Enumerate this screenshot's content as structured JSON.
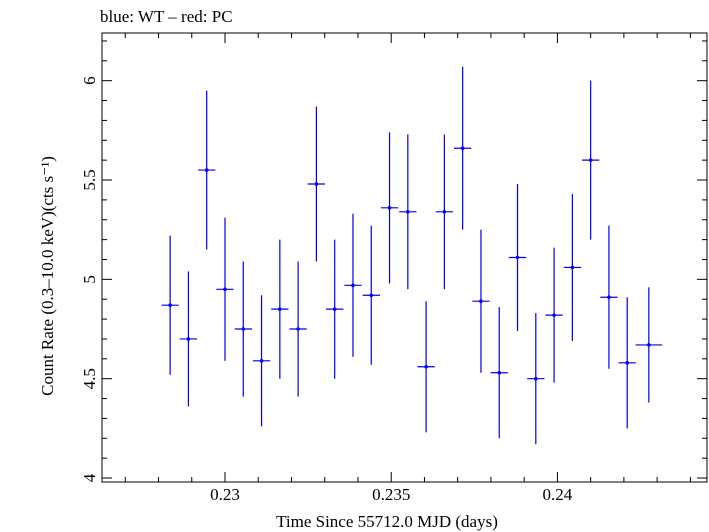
{
  "chart_data": {
    "type": "scatter",
    "title": "blue: WT – red: PC",
    "xlabel": "Time Since 55712.0 MJD (days)",
    "ylabel": "Count Rate (0.3–10.0 keV)(cts s⁻¹)",
    "xlim": [
      0.2263,
      0.2445
    ],
    "ylim": [
      3.98,
      6.24
    ],
    "xticks": [
      0.23,
      0.235,
      0.24
    ],
    "xtick_labels": [
      "0.23",
      "0.235",
      "0.24"
    ],
    "yticks": [
      4,
      4.5,
      5,
      5.5,
      6
    ],
    "ytick_labels": [
      "4",
      "4.5",
      "5",
      "5.5",
      "6"
    ],
    "grid": false,
    "series": [
      {
        "color": "#0000ee",
        "points": [
          {
            "x": 0.22835,
            "y": 4.87,
            "xerr": 0.00026,
            "yerr": 0.35
          },
          {
            "x": 0.2289,
            "y": 4.7,
            "xerr": 0.00026,
            "yerr": 0.34
          },
          {
            "x": 0.22945,
            "y": 5.55,
            "xerr": 0.00026,
            "yerr": 0.4
          },
          {
            "x": 0.23,
            "y": 4.95,
            "xerr": 0.00026,
            "yerr": 0.36
          },
          {
            "x": 0.23055,
            "y": 4.75,
            "xerr": 0.00026,
            "yerr": 0.34
          },
          {
            "x": 0.2311,
            "y": 4.59,
            "xerr": 0.00026,
            "yerr": 0.33
          },
          {
            "x": 0.23165,
            "y": 4.85,
            "xerr": 0.00026,
            "yerr": 0.35
          },
          {
            "x": 0.2322,
            "y": 4.75,
            "xerr": 0.00026,
            "yerr": 0.34
          },
          {
            "x": 0.23275,
            "y": 5.48,
            "xerr": 0.00026,
            "yerr": 0.39
          },
          {
            "x": 0.2333,
            "y": 4.85,
            "xerr": 0.00026,
            "yerr": 0.35
          },
          {
            "x": 0.23385,
            "y": 4.97,
            "xerr": 0.00026,
            "yerr": 0.36
          },
          {
            "x": 0.2344,
            "y": 4.92,
            "xerr": 0.00026,
            "yerr": 0.35
          },
          {
            "x": 0.23495,
            "y": 5.36,
            "xerr": 0.00026,
            "yerr": 0.38
          },
          {
            "x": 0.2355,
            "y": 5.34,
            "xerr": 0.00026,
            "yerr": 0.39
          },
          {
            "x": 0.23605,
            "y": 4.56,
            "xerr": 0.00026,
            "yerr": 0.33
          },
          {
            "x": 0.2366,
            "y": 5.34,
            "xerr": 0.00026,
            "yerr": 0.39
          },
          {
            "x": 0.23715,
            "y": 5.66,
            "xerr": 0.00026,
            "yerr": 0.41
          },
          {
            "x": 0.2377,
            "y": 4.89,
            "xerr": 0.00026,
            "yerr": 0.36
          },
          {
            "x": 0.23825,
            "y": 4.53,
            "xerr": 0.00026,
            "yerr": 0.33
          },
          {
            "x": 0.2388,
            "y": 5.11,
            "xerr": 0.00026,
            "yerr": 0.37
          },
          {
            "x": 0.23935,
            "y": 4.5,
            "xerr": 0.00026,
            "yerr": 0.33
          },
          {
            "x": 0.2399,
            "y": 4.82,
            "xerr": 0.00026,
            "yerr": 0.34
          },
          {
            "x": 0.24045,
            "y": 5.06,
            "xerr": 0.00026,
            "yerr": 0.37
          },
          {
            "x": 0.241,
            "y": 5.6,
            "xerr": 0.00026,
            "yerr": 0.4
          },
          {
            "x": 0.24155,
            "y": 4.91,
            "xerr": 0.00026,
            "yerr": 0.36
          },
          {
            "x": 0.2421,
            "y": 4.58,
            "xerr": 0.00026,
            "yerr": 0.33
          },
          {
            "x": 0.24275,
            "y": 4.67,
            "xerr": 0.0004,
            "yerr": 0.29
          }
        ]
      }
    ]
  }
}
